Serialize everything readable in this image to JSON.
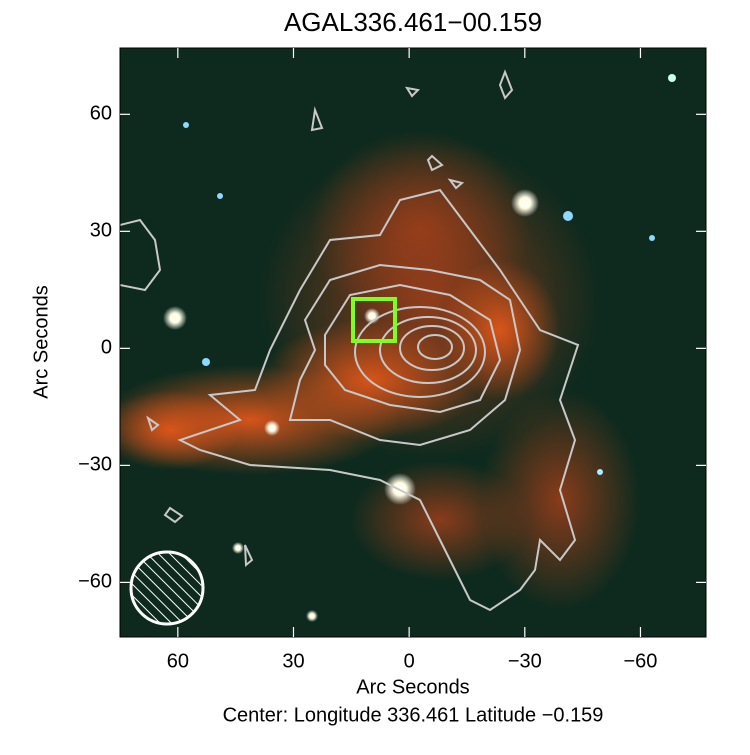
{
  "chart_data": {
    "type": "image",
    "title": "AGAL336.461−00.159",
    "xlabel": "Arc Seconds",
    "ylabel": "Arc Seconds",
    "caption": "Center:  Longitude 336.461 Latitude −0.159",
    "xlim": [
      75,
      -77
    ],
    "ylim": [
      -74,
      77
    ],
    "xticks": [
      60,
      30,
      0,
      {
        "value": -30,
        "label": "−30"
      },
      {
        "value": -60,
        "label": "−60"
      }
    ],
    "yticks": [
      {
        "value": -60,
        "label": "−60"
      },
      {
        "value": -30,
        "label": "−30"
      },
      0,
      30,
      60
    ]
  }
}
